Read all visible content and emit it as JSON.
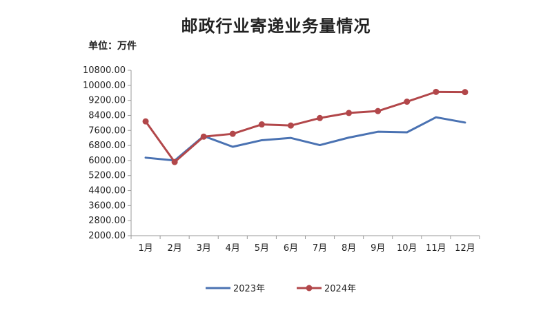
{
  "chart_data": {
    "type": "line",
    "title": "邮政行业寄递业务量情况",
    "unit_label": "单位：万件",
    "categories": [
      "1月",
      "2月",
      "3月",
      "4月",
      "5月",
      "6月",
      "7月",
      "8月",
      "9月",
      "10月",
      "11月",
      "12月"
    ],
    "ylim": [
      2000,
      10800
    ],
    "yticks": [
      "2000.00",
      "2800.00",
      "3600.00",
      "4400.00",
      "5200.00",
      "6000.00",
      "6800.00",
      "7600.00",
      "8400.00",
      "9200.00",
      "10000.00",
      "10800.00"
    ],
    "grid": false,
    "legend_position": "bottom",
    "series": [
      {
        "name": "2023年",
        "color": "#4a72b2",
        "marker": false,
        "values": [
          6150,
          6000,
          7300,
          6730,
          7080,
          7200,
          6820,
          7220,
          7530,
          7500,
          8300,
          8020
        ]
      },
      {
        "name": "2024年",
        "color": "#b2474a",
        "marker": true,
        "values": [
          8080,
          5920,
          7270,
          7420,
          7920,
          7860,
          8260,
          8530,
          8630,
          9130,
          9650,
          9640
        ]
      }
    ]
  }
}
